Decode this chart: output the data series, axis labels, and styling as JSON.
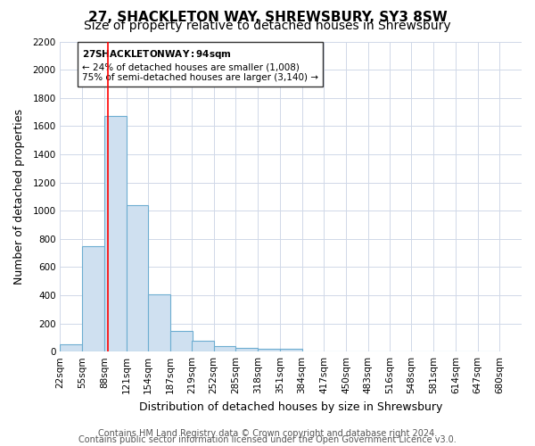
{
  "title": "27, SHACKLETON WAY, SHREWSBURY, SY3 8SW",
  "subtitle": "Size of property relative to detached houses in Shrewsbury",
  "xlabel": "Distribution of detached houses by size in Shrewsbury",
  "ylabel": "Number of detached properties",
  "bin_labels": [
    "22sqm",
    "55sqm",
    "88sqm",
    "121sqm",
    "154sqm",
    "187sqm",
    "219sqm",
    "252sqm",
    "285sqm",
    "318sqm",
    "351sqm",
    "384sqm",
    "417sqm",
    "450sqm",
    "483sqm",
    "516sqm",
    "548sqm",
    "581sqm",
    "614sqm",
    "647sqm",
    "680sqm"
  ],
  "bin_edges": [
    22,
    55,
    88,
    121,
    154,
    187,
    219,
    252,
    285,
    318,
    351,
    384,
    417,
    450,
    483,
    516,
    548,
    581,
    614,
    647,
    680
  ],
  "bar_heights": [
    50,
    745,
    1672,
    1040,
    405,
    148,
    80,
    40,
    25,
    22,
    18,
    0,
    0,
    0,
    0,
    0,
    0,
    0,
    0,
    0
  ],
  "bar_color": "#cfe0f0",
  "bar_edge_color": "#6dadd1",
  "vline_x": 94,
  "vline_color": "red",
  "annotation_title": "27 SHACKLETON WAY: 94sqm",
  "annotation_line1": "← 24% of detached houses are smaller (1,008)",
  "annotation_line2": "75% of semi-detached houses are larger (3,140) →",
  "annotation_box_color": "#ffffff",
  "annotation_box_edge": "#333333",
  "ylim": [
    0,
    2200
  ],
  "yticks": [
    0,
    200,
    400,
    600,
    800,
    1000,
    1200,
    1400,
    1600,
    1800,
    2000,
    2200
  ],
  "footer_line1": "Contains HM Land Registry data © Crown copyright and database right 2024.",
  "footer_line2": "Contains public sector information licensed under the Open Government Licence v3.0.",
  "background_color": "#ffffff",
  "grid_color": "#d0d8e8",
  "title_fontsize": 11,
  "subtitle_fontsize": 10,
  "axis_label_fontsize": 9,
  "tick_fontsize": 7.5,
  "footer_fontsize": 7
}
